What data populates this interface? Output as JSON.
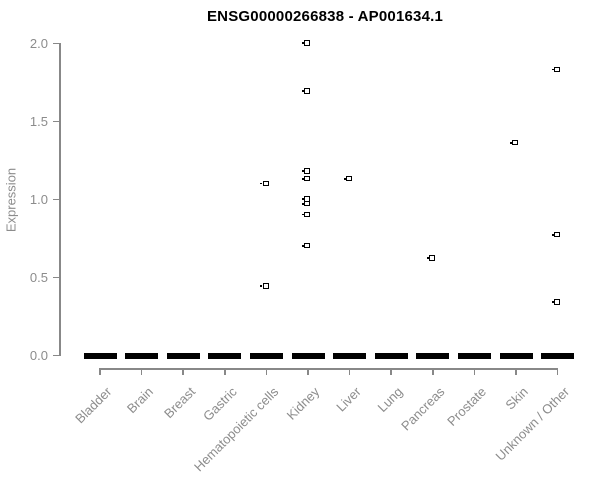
{
  "chart_data": {
    "type": "scatter",
    "title": "ENSG00000266838 - AP001634.1",
    "xlabel": "",
    "ylabel": "Expression",
    "ylim": [
      0.0,
      2.0
    ],
    "ytick_labels": [
      "0.0",
      "0.5",
      "1.0",
      "1.5",
      "2.0"
    ],
    "grid": false,
    "legend": false,
    "marker": "open-square",
    "categories": [
      "Bladder",
      "Brain",
      "Breast",
      "Gastric",
      "Hematopoietic cells",
      "Kidney",
      "Liver",
      "Lung",
      "Pancreas",
      "Prostate",
      "Skin",
      "Unknown / Other"
    ],
    "zero_baseline": {
      "value": 0.0,
      "applies_to": "all categories",
      "note": "thick black dash of overlapping zero-expression points at y=0 for every category"
    },
    "series": [
      {
        "name": "nonzero expression points",
        "per_category_values": [
          [],
          [],
          [],
          [],
          [
            1.1,
            0.44
          ],
          [
            2.0,
            1.69,
            1.18,
            1.13,
            1.0,
            0.97,
            0.9,
            0.7
          ],
          [
            1.13
          ],
          [],
          [
            0.62
          ],
          [],
          [
            1.36
          ],
          [
            1.83,
            0.77,
            0.34
          ]
        ]
      }
    ],
    "colors": {
      "marker": "#000000",
      "title_text": "#000000",
      "axis_line": "#888888",
      "tick_text": "#8c8c8c",
      "background": "#ffffff"
    }
  }
}
